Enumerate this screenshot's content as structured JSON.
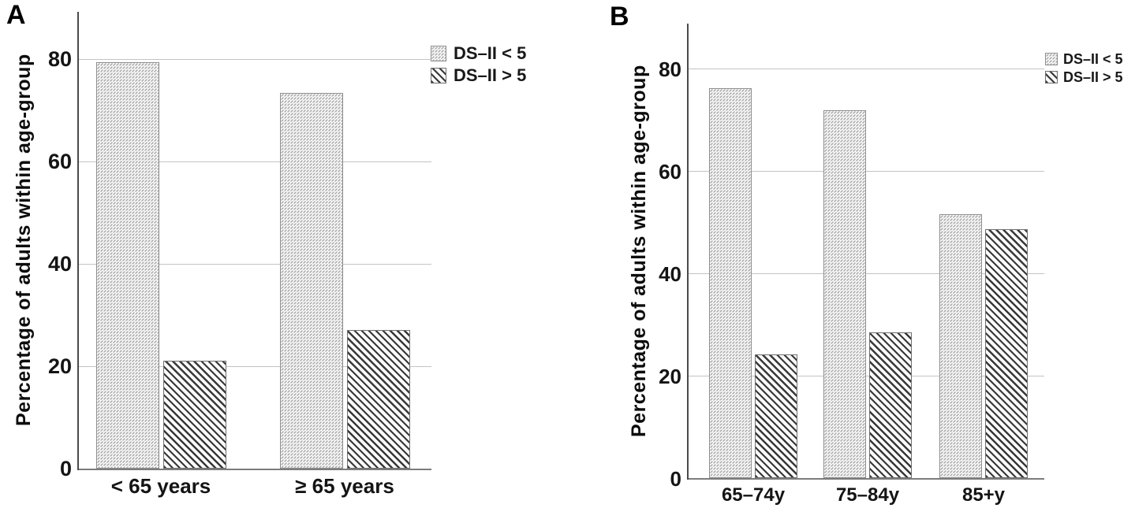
{
  "figure": {
    "background": "#ffffff",
    "panels": [
      {
        "letter": "A"
      },
      {
        "letter": "B"
      }
    ]
  },
  "chart_data": [
    {
      "type": "bar",
      "panel": "A",
      "title": "",
      "xlabel": "",
      "ylabel": "Percentage of adults within age-group",
      "categories": [
        "< 65 years",
        "≥ 65 years"
      ],
      "series": [
        {
          "name": "DS–II < 5",
          "pattern": "dots",
          "values": [
            79.4,
            73.4
          ]
        },
        {
          "name": "DS–II > 5",
          "pattern": "diagonal-hatch",
          "values": [
            21.1,
            27.0
          ]
        }
      ],
      "yticks": [
        0,
        20,
        40,
        60,
        80
      ],
      "ylim": [
        0,
        89
      ],
      "grid": true,
      "gridline_color": "#c3c3c3",
      "legend_position": "top-right"
    },
    {
      "type": "bar",
      "panel": "B",
      "title": "",
      "xlabel": "",
      "ylabel": "Percentage of adults within age-group",
      "categories": [
        "65–74y",
        "75–84y",
        "85+y"
      ],
      "series": [
        {
          "name": "DS–II < 5",
          "pattern": "dots",
          "values": [
            76.2,
            71.9,
            51.5
          ]
        },
        {
          "name": "DS–II > 5",
          "pattern": "diagonal-hatch",
          "values": [
            24.2,
            28.5,
            48.6
          ]
        }
      ],
      "yticks": [
        0,
        20,
        40,
        60,
        80
      ],
      "ylim": [
        0,
        89
      ],
      "grid": true,
      "gridline_color": "#c3c3c3",
      "legend_position": "top-right"
    }
  ]
}
